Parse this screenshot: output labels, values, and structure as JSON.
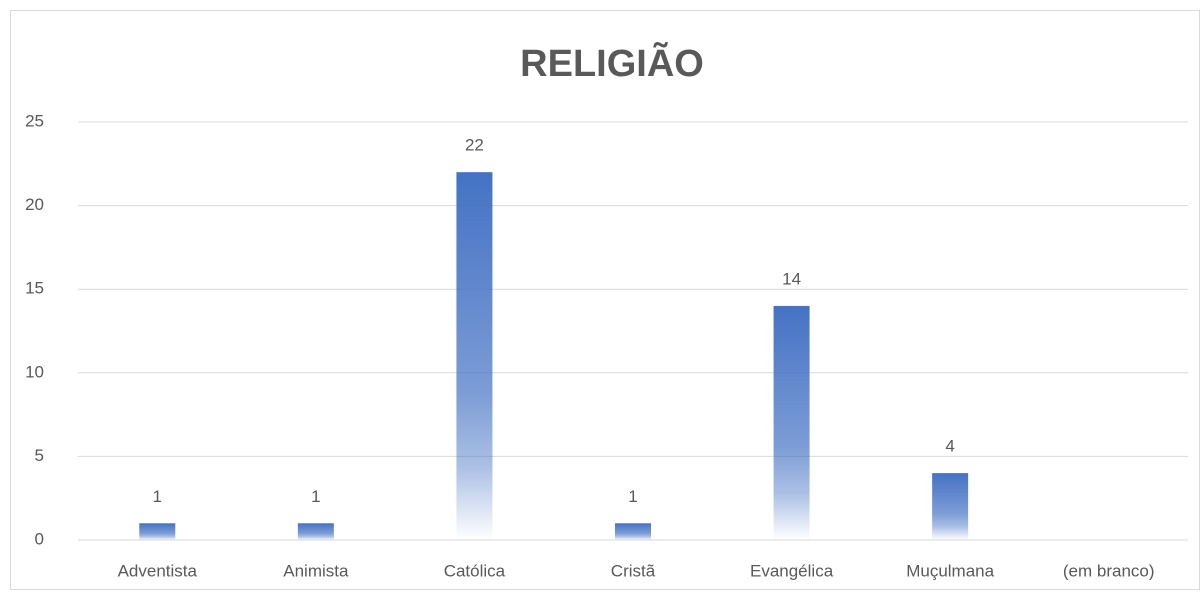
{
  "chart_data": {
    "type": "bar",
    "title": "RELIGIÃO",
    "categories": [
      "Adventista",
      "Animista",
      "Católica",
      "Cristã",
      "Evangélica",
      "Muçulmana",
      "(em branco)"
    ],
    "values": [
      1,
      1,
      22,
      1,
      14,
      4,
      null
    ],
    "color": "#4472c4",
    "ylim": [
      0,
      25
    ],
    "yticks": [
      0,
      5,
      10,
      15,
      20,
      25
    ],
    "grid": true
  }
}
